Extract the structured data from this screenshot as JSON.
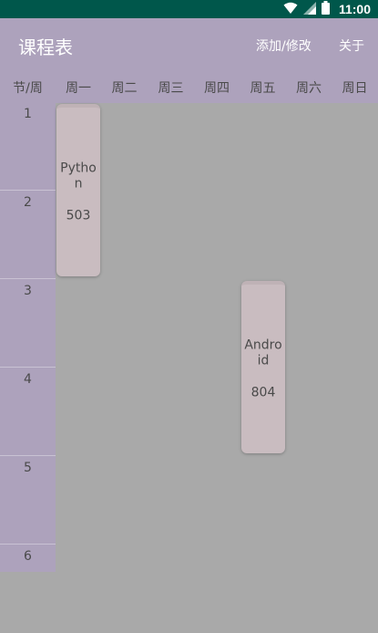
{
  "status_bar": {
    "time": "11:00",
    "icons": [
      "wifi-icon",
      "signal-icon",
      "battery-icon"
    ]
  },
  "app_bar": {
    "title": "课程表",
    "actions": [
      "添加/修改",
      "关于"
    ]
  },
  "week_header": {
    "corner": "节/周",
    "days": [
      "周一",
      "周二",
      "周三",
      "周四",
      "周五",
      "周六",
      "周日"
    ]
  },
  "periods": [
    "1",
    "2",
    "3",
    "4",
    "5",
    "6"
  ],
  "courses": [
    {
      "name": "Python",
      "room": "503",
      "day": 1,
      "start_period": 1,
      "end_period": 2
    },
    {
      "name": "Android",
      "room": "804",
      "day": 5,
      "start_period": 3,
      "end_period": 4
    }
  ],
  "colors": {
    "status_bar": "#00574b",
    "app_bar": "#ada2bc",
    "grid_background": "#a9a9a9",
    "course_card": "#c9bcc0"
  }
}
